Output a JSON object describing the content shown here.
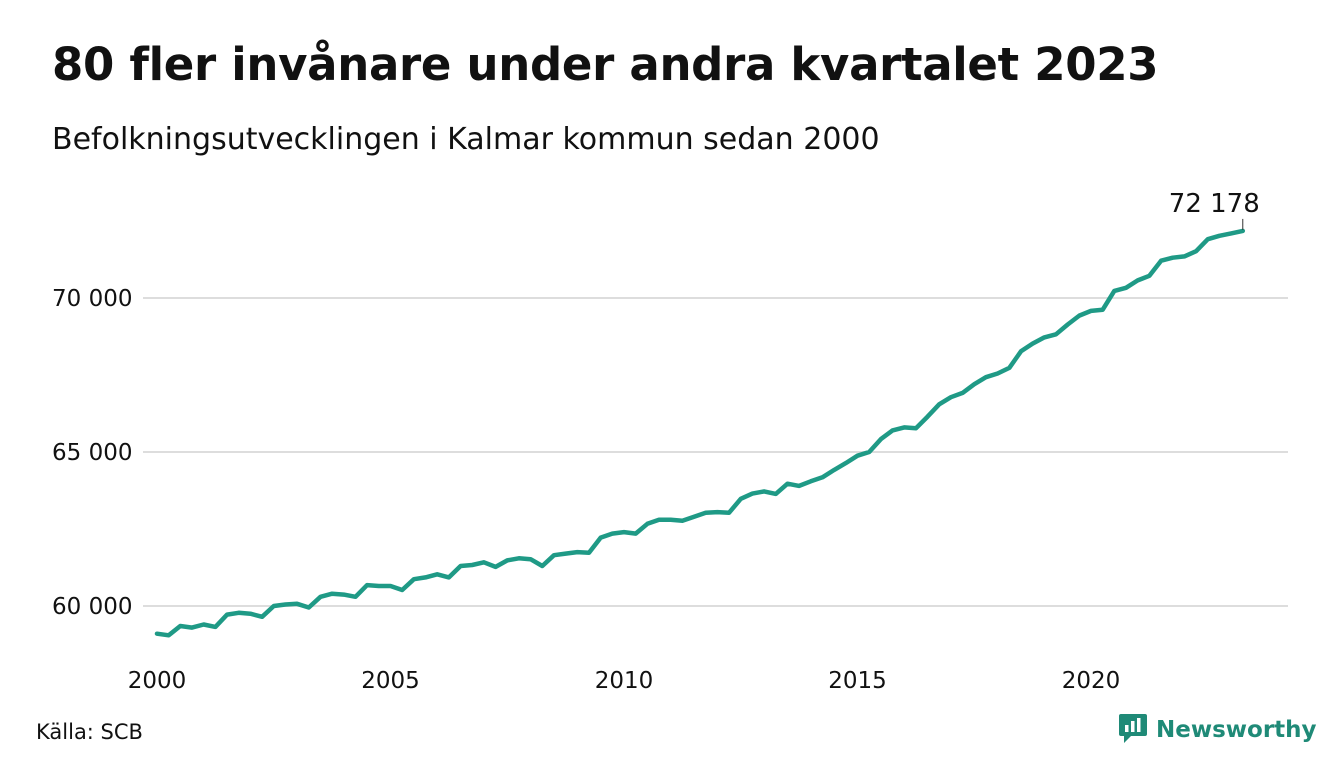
{
  "title": "80 fler invånare under andra kvartalet 2023",
  "subtitle": "Befolkningsutvecklingen i Kalmar kommun sedan 2000",
  "source": "Källa: SCB",
  "brand": {
    "name": "Newsworthy",
    "icon": "newsworthy-logo-icon",
    "color": "#1f8a77"
  },
  "end_label": "72 178",
  "chart_data": {
    "type": "line",
    "title": "80 fler invånare under andra kvartalet 2023",
    "subtitle": "Befolkningsutvecklingen i Kalmar kommun sedan 2000",
    "xlabel": "",
    "ylabel": "",
    "xlim": [
      2000,
      2023.75
    ],
    "ylim": [
      58500,
      72500
    ],
    "x_ticks": [
      2000,
      2005,
      2010,
      2015,
      2020
    ],
    "x_tick_labels": [
      "2000",
      "2005",
      "2010",
      "2015",
      "2020"
    ],
    "y_ticks": [
      60000,
      65000,
      70000
    ],
    "y_tick_labels": [
      "60 000",
      "65 000",
      "70 000"
    ],
    "grid": "horizontal",
    "line_color": "#1f9a86",
    "grid_color": "#dddddd",
    "end_value_label": "72 178",
    "series": [
      {
        "x": [
          "2000-Q1",
          "2000-Q2",
          "2000-Q3",
          "2000-Q4",
          "2001-Q1",
          "2001-Q2",
          "2001-Q3",
          "2001-Q4",
          "2002-Q1",
          "2002-Q2",
          "2002-Q3",
          "2002-Q4",
          "2003-Q1",
          "2003-Q2",
          "2003-Q3",
          "2003-Q4",
          "2004-Q1",
          "2004-Q2",
          "2004-Q3",
          "2004-Q4",
          "2005-Q1",
          "2005-Q2",
          "2005-Q3",
          "2005-Q4",
          "2006-Q1",
          "2006-Q2",
          "2006-Q3",
          "2006-Q4",
          "2007-Q1",
          "2007-Q2",
          "2007-Q3",
          "2007-Q4",
          "2008-Q1",
          "2008-Q2",
          "2008-Q3",
          "2008-Q4",
          "2009-Q1",
          "2009-Q2",
          "2009-Q3",
          "2009-Q4",
          "2010-Q1",
          "2010-Q2",
          "2010-Q3",
          "2010-Q4",
          "2011-Q1",
          "2011-Q2",
          "2011-Q3",
          "2011-Q4",
          "2012-Q1",
          "2012-Q2",
          "2012-Q3",
          "2012-Q4",
          "2013-Q1",
          "2013-Q2",
          "2013-Q3",
          "2013-Q4",
          "2014-Q1",
          "2014-Q2",
          "2014-Q3",
          "2014-Q4",
          "2015-Q1",
          "2015-Q2",
          "2015-Q3",
          "2015-Q4",
          "2016-Q1",
          "2016-Q2",
          "2016-Q3",
          "2016-Q4",
          "2017-Q1",
          "2017-Q2",
          "2017-Q3",
          "2017-Q4",
          "2018-Q1",
          "2018-Q2",
          "2018-Q3",
          "2018-Q4",
          "2019-Q1",
          "2019-Q2",
          "2019-Q3",
          "2019-Q4",
          "2020-Q1",
          "2020-Q2",
          "2020-Q3",
          "2020-Q4",
          "2021-Q1",
          "2021-Q2",
          "2021-Q3",
          "2021-Q4",
          "2022-Q1",
          "2022-Q2",
          "2022-Q3",
          "2022-Q4",
          "2023-Q1",
          "2023-Q2"
        ],
        "values": [
          59100,
          59050,
          59350,
          59300,
          59400,
          59320,
          59720,
          59780,
          59750,
          59650,
          60000,
          60050,
          60070,
          59950,
          60300,
          60400,
          60370,
          60300,
          60680,
          60650,
          60650,
          60520,
          60870,
          60930,
          61030,
          60930,
          61300,
          61330,
          61420,
          61270,
          61480,
          61550,
          61520,
          61300,
          61650,
          61700,
          61750,
          61730,
          62220,
          62350,
          62400,
          62350,
          62670,
          62800,
          62800,
          62770,
          62900,
          63030,
          63050,
          63030,
          63480,
          63650,
          63720,
          63640,
          63970,
          63900,
          64050,
          64180,
          64420,
          64640,
          64880,
          65000,
          65420,
          65700,
          65800,
          65770,
          66150,
          66550,
          66780,
          66920,
          67200,
          67430,
          67550,
          67730,
          68270,
          68520,
          68720,
          68820,
          69140,
          69430,
          69580,
          69620,
          70230,
          70330,
          70570,
          70720,
          71210,
          71310,
          71350,
          71520,
          71910,
          72020,
          72098,
          72178
        ]
      }
    ]
  }
}
